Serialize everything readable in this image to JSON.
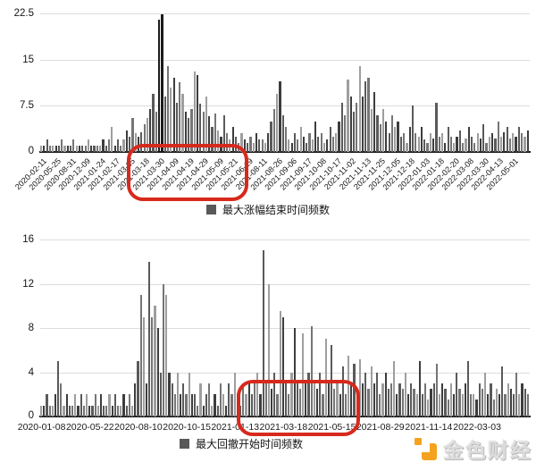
{
  "chart_data": {
    "type": "bar",
    "charts": [
      {
        "id": "max-gain-end-time",
        "legend": "最大涨幅结束时间频数",
        "ymax": 22.5,
        "ylim": [
          0,
          22.5
        ],
        "grid": true,
        "legend_position": "bottom-center",
        "y_ticks": [
          "22.5",
          "15",
          "7.5",
          "0"
        ],
        "label_every": 5,
        "x_labels": [
          "2020-02-11",
          "2020-05-25",
          "2020-08-31",
          "2020-12-09",
          "2021-01-24",
          "2021-02-17",
          "2021-03-05",
          "2021-03-18",
          "2021-03-30",
          "2021-04-09",
          "2021-04-19",
          "2021-04-29",
          "2021-05-09",
          "2021-05-21",
          "2021-06-19",
          "2021-08-11",
          "2021-08-26",
          "2021-09-06",
          "2021-09-17",
          "2021-10-08",
          "2021-10-17",
          "2021-11-02",
          "2021-11-13",
          "2021-11-25",
          "2021-12-05",
          "2021-12-18",
          "2022-01-03",
          "2022-01-18",
          "2022-02-20",
          "2022-03-08",
          "2022-03-30",
          "2022-04-13",
          "2022-05-01"
        ],
        "values": [
          1,
          1,
          2,
          1,
          1,
          1,
          1,
          2,
          1,
          1,
          1,
          2,
          1,
          1,
          1,
          1,
          2,
          1,
          1,
          1,
          1,
          2,
          1,
          2,
          4,
          1,
          2,
          1,
          2,
          3.5,
          2.5,
          5.5,
          3,
          2.5,
          3.2,
          4.5,
          5.5,
          7,
          9.5,
          6.5,
          21.5,
          22.3,
          9,
          14,
          10.5,
          12,
          8,
          11.3,
          9.5,
          6.5,
          5.5,
          7,
          13,
          12.5,
          7.8,
          6.5,
          9,
          5.8,
          4,
          6.2,
          3.5,
          2.5,
          6,
          3,
          2,
          4,
          2.5,
          1.5,
          3,
          2,
          1.5,
          2.5,
          1.5,
          3,
          2,
          2,
          1.5,
          3,
          5,
          7,
          9.5,
          11.5,
          6,
          4,
          2,
          1.5,
          3,
          2,
          4,
          2.5,
          1.5,
          3,
          2,
          5,
          2.5,
          3,
          1.5,
          2,
          4,
          2.5,
          3,
          5,
          8,
          6,
          11.7,
          9,
          6.5,
          8,
          13.9,
          9,
          11.5,
          12,
          7,
          9.8,
          6,
          4.5,
          7,
          5,
          3,
          6,
          4,
          5,
          2.5,
          3,
          1.5,
          4,
          7.5,
          3,
          2.5,
          4,
          2,
          1.5,
          3,
          2.2,
          8,
          2.5,
          3,
          1.5,
          4,
          2.5,
          1.5,
          2.5,
          3.5,
          1.5,
          2.2,
          4,
          2.5,
          1.5,
          3,
          2.2,
          4.5,
          1.5,
          2.5,
          3,
          2.2,
          5,
          2.5,
          3.2,
          4,
          2.2,
          3,
          2.5,
          4,
          3,
          2.5,
          3.5
        ]
      },
      {
        "id": "max-drawdown-start-time",
        "legend": "最大回撤开始时间频数",
        "ymax": 16,
        "ylim": [
          0,
          16
        ],
        "grid": true,
        "legend_position": "bottom-center",
        "y_ticks": [
          "16",
          "12",
          "8",
          "4",
          "0"
        ],
        "label_every": 17,
        "x_labels": [
          "2020-01-08",
          "2020-05-22",
          "2020-08-10",
          "2020-10-15",
          "2021-01-13",
          "2021-03-18",
          "2021-05-15",
          "2021-08-29",
          "2021-11-14",
          "2022-03-03"
        ],
        "values": [
          1,
          1,
          2,
          1,
          1,
          2,
          5,
          3,
          1,
          2,
          1,
          1,
          2,
          1,
          2,
          1,
          2,
          1,
          1,
          2,
          1,
          2,
          1,
          1,
          2,
          1,
          2,
          1,
          1,
          2,
          1,
          2,
          1,
          3,
          5,
          11,
          9,
          3,
          14,
          9,
          10,
          8,
          4,
          12,
          11,
          4,
          3,
          2,
          4,
          2,
          3,
          2,
          4,
          2,
          2,
          1,
          3,
          1,
          2,
          3,
          1,
          2,
          1,
          3,
          2,
          1,
          3,
          2,
          4,
          2,
          1,
          3,
          2,
          3,
          2,
          3,
          4,
          2,
          15,
          3,
          12,
          2.5,
          4,
          2,
          9.5,
          9,
          3,
          2,
          4,
          8,
          3,
          2.5,
          7.5,
          3,
          4,
          8.2,
          3,
          2.5,
          4,
          2,
          7,
          3,
          6.5,
          2.5,
          3,
          2,
          4.5,
          2,
          5.5,
          3,
          4.8,
          2.5,
          5.2,
          3,
          4,
          2.5,
          4.5,
          3,
          4,
          2,
          3,
          4,
          2.5,
          3,
          5,
          2,
          3,
          2.5,
          4,
          2,
          3,
          2.5,
          2,
          5,
          2,
          3,
          1.5,
          2.5,
          3,
          4.8,
          2,
          3,
          2.5,
          1.5,
          3,
          2,
          4,
          2.5,
          2,
          3,
          5,
          2,
          2,
          1.5,
          3,
          2.5,
          4,
          2,
          3,
          1.5,
          2.5,
          2,
          4.5,
          2,
          3,
          2.5,
          2,
          4,
          2,
          3,
          2.5,
          2
        ]
      }
    ]
  },
  "annotations": {
    "highlight_color": "#d7291c",
    "top_box_range": "2021-03-05 ~ 2021-06-19",
    "bottom_box_range": "2021-01-13 ~ 2021-05-15"
  },
  "colors": {
    "bar_palette": [
      "#3d3d3d",
      "#5a5a5a",
      "#757575",
      "#9e9e9e"
    ],
    "bar_darkest": "#1c1c1c",
    "legend_marker": "#595959",
    "gridline": "#dcdcdc",
    "axis": "#1a1a1a",
    "watermark_orange": "#f5a31e"
  },
  "watermark": {
    "text": "金色财经"
  }
}
